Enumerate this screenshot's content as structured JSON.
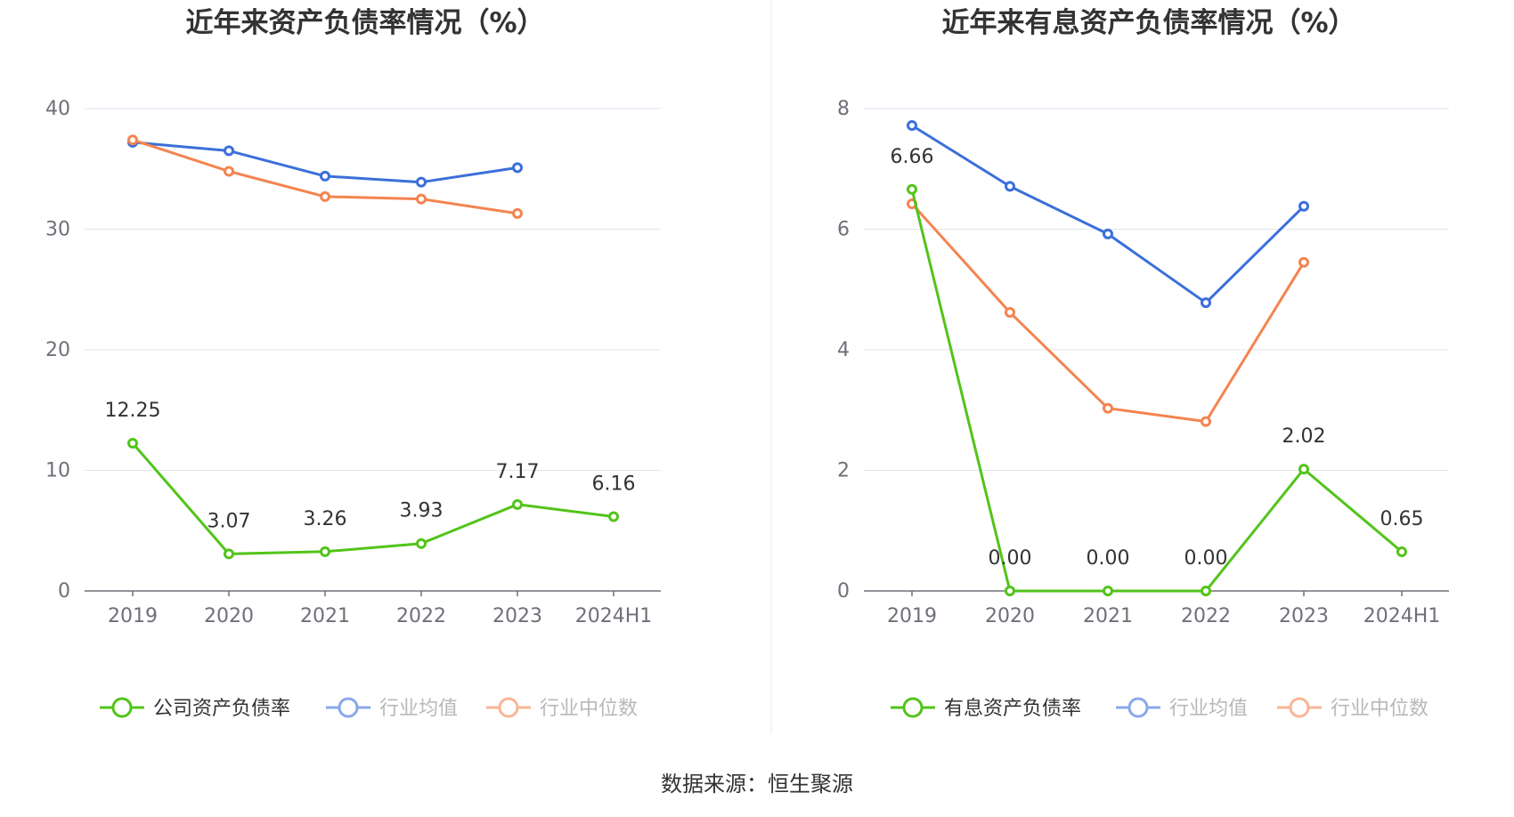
{
  "source_text": "数据来源：恒生聚源",
  "chart_data": [
    {
      "type": "line",
      "title": "近年来资产负债率情况（%）",
      "categories": [
        "2019",
        "2020",
        "2021",
        "2022",
        "2023",
        "2024H1"
      ],
      "ylim": [
        0,
        40
      ],
      "yticks": [
        0,
        10,
        20,
        30,
        40
      ],
      "grid": true,
      "legend_position": "bottom",
      "series": [
        {
          "name": "公司资产负债率",
          "color": "#52c41a",
          "values": [
            12.25,
            3.07,
            3.26,
            3.93,
            7.17,
            6.16
          ],
          "labels": [
            "12.25",
            "3.07",
            "3.26",
            "3.93",
            "7.17",
            "6.16"
          ]
        },
        {
          "name": "行业均值",
          "color": "#3b6fdb",
          "values": [
            37.2,
            36.5,
            34.4,
            33.9,
            35.1,
            null
          ]
        },
        {
          "name": "行业中位数",
          "color": "#f4844f",
          "values": [
            37.4,
            34.8,
            32.7,
            32.5,
            31.3,
            null
          ]
        }
      ]
    },
    {
      "type": "line",
      "title": "近年来有息资产负债率情况（%）",
      "categories": [
        "2019",
        "2020",
        "2021",
        "2022",
        "2023",
        "2024H1"
      ],
      "ylim": [
        0,
        8
      ],
      "yticks": [
        0,
        2,
        4,
        6,
        8
      ],
      "grid": true,
      "legend_position": "bottom",
      "series": [
        {
          "name": "有息资产负债率",
          "color": "#52c41a",
          "values": [
            6.66,
            0.0,
            0.0,
            0.0,
            2.02,
            0.65
          ],
          "labels": [
            "6.66",
            "0.00",
            "0.00",
            "0.00",
            "2.02",
            "0.65"
          ]
        },
        {
          "name": "行业均值",
          "color": "#3b6fdb",
          "values": [
            7.72,
            6.71,
            5.92,
            4.78,
            6.38,
            null
          ]
        },
        {
          "name": "行业中位数",
          "color": "#f4844f",
          "values": [
            6.42,
            4.62,
            3.03,
            2.81,
            5.45,
            null
          ]
        }
      ]
    }
  ]
}
